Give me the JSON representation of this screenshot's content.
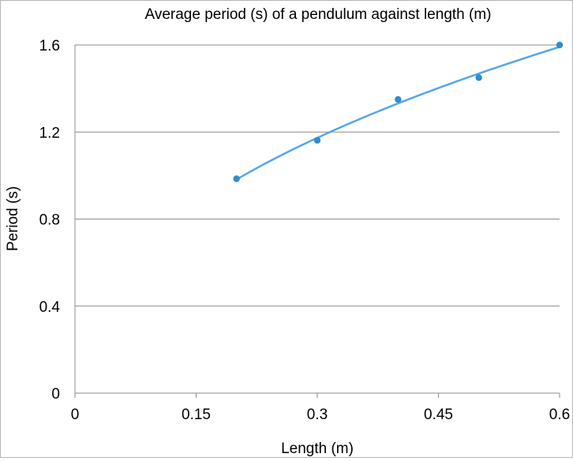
{
  "chart_data": {
    "type": "scatter",
    "title": "Average period (s) of a pendulum against length (m)",
    "xlabel": "Length (m)",
    "ylabel": "Period (s)",
    "xlim": [
      0,
      0.6
    ],
    "ylim": [
      0,
      1.6
    ],
    "x_ticks": [
      0,
      0.15,
      0.3,
      0.45,
      0.6
    ],
    "x_tick_labels": [
      "0",
      "0.15",
      "0.3",
      "0.45",
      "0.6"
    ],
    "y_ticks": [
      0,
      0.4,
      0.8,
      1.2,
      1.6
    ],
    "y_tick_labels": [
      "0",
      "0.4",
      "0.8",
      "1.2",
      "1.6"
    ],
    "grid": "horizontal",
    "legend": "none",
    "series": [
      {
        "x": [
          0.2,
          0.3,
          0.4,
          0.5,
          0.6
        ],
        "y": [
          0.985,
          1.162,
          1.35,
          1.45,
          1.6
        ],
        "color": "#2f8ccf"
      }
    ],
    "trendline": {
      "type": "power",
      "color": "#55a6ea"
    }
  }
}
